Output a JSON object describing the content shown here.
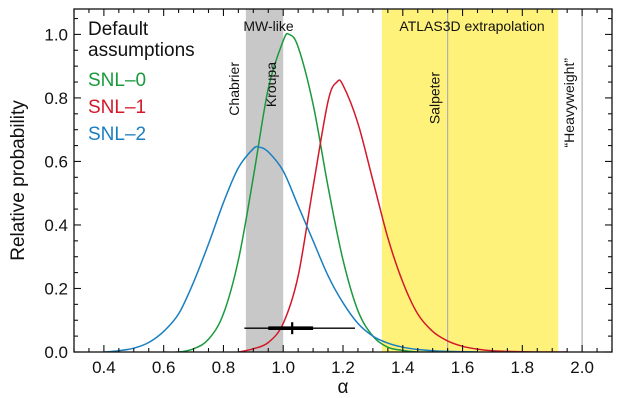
{
  "chart_data": {
    "type": "line",
    "xlabel": "α",
    "ylabel": "Relative probability",
    "xlim": [
      0.3,
      2.1
    ],
    "ylim": [
      0.0,
      1.08
    ],
    "xticks": [
      "0.4",
      "0.6",
      "0.8",
      "1.0",
      "1.2",
      "1.4",
      "1.6",
      "1.8",
      "2.0"
    ],
    "yticks": [
      "0.0",
      "0.2",
      "0.4",
      "0.6",
      "0.8",
      "1.0"
    ],
    "legend": {
      "position": "top-left",
      "title_line1": "Default",
      "title_line2": "assumptions",
      "entries": [
        "SNL–0",
        "SNL–1",
        "SNL–2"
      ]
    },
    "colors": {
      "SNL-0": "#1a9a3c",
      "SNL-1": "#d4182a",
      "SNL-2": "#1a7fc0",
      "mw_band": "#c8c8c8",
      "atlas_band": "#fff27a",
      "ref_line": "#b0b0b0"
    },
    "series": [
      {
        "name": "SNL–0",
        "x": [
          0.6,
          0.65,
          0.7,
          0.75,
          0.8,
          0.85,
          0.9,
          0.95,
          1.0,
          1.02,
          1.05,
          1.1,
          1.15,
          1.2,
          1.25,
          1.3,
          1.35,
          1.4,
          1.45,
          1.5
        ],
        "y": [
          0.0,
          0.0,
          0.01,
          0.04,
          0.12,
          0.29,
          0.55,
          0.83,
          0.98,
          1.0,
          0.96,
          0.78,
          0.52,
          0.29,
          0.13,
          0.05,
          0.015,
          0.005,
          0.0,
          0.0
        ]
      },
      {
        "name": "SNL–1",
        "x": [
          0.85,
          0.9,
          0.95,
          1.0,
          1.05,
          1.1,
          1.15,
          1.18,
          1.2,
          1.25,
          1.3,
          1.35,
          1.4,
          1.45,
          1.5,
          1.55,
          1.6,
          1.65,
          1.7,
          1.75,
          1.8,
          1.85,
          1.9,
          1.95
        ],
        "y": [
          0.0,
          0.01,
          0.03,
          0.09,
          0.24,
          0.52,
          0.79,
          0.85,
          0.84,
          0.72,
          0.54,
          0.36,
          0.22,
          0.12,
          0.065,
          0.035,
          0.018,
          0.009,
          0.004,
          0.002,
          0.001,
          0.0,
          0.0,
          0.0
        ]
      },
      {
        "name": "SNL–2",
        "x": [
          0.4,
          0.45,
          0.5,
          0.55,
          0.6,
          0.65,
          0.7,
          0.75,
          0.8,
          0.85,
          0.9,
          0.92,
          0.95,
          1.0,
          1.05,
          1.1,
          1.15,
          1.2,
          1.25,
          1.3,
          1.35,
          1.4,
          1.45,
          1.5,
          1.55,
          1.6,
          1.65
        ],
        "y": [
          0.0,
          0.004,
          0.012,
          0.03,
          0.065,
          0.12,
          0.22,
          0.34,
          0.47,
          0.58,
          0.64,
          0.645,
          0.63,
          0.57,
          0.46,
          0.35,
          0.24,
          0.155,
          0.09,
          0.05,
          0.028,
          0.015,
          0.008,
          0.004,
          0.002,
          0.001,
          0.0
        ]
      }
    ],
    "bands": [
      {
        "label": "MW-like",
        "x": [
          0.875,
          1.0
        ]
      },
      {
        "label": "ATLAS3D extrapolation",
        "x": [
          1.33,
          1.92
        ]
      }
    ],
    "vlines": [
      {
        "label": "Chabrier",
        "x": 0.875
      },
      {
        "label": "Kroupa",
        "x": 1.0
      },
      {
        "label": "Salpeter",
        "x": 1.55
      },
      {
        "label": "“Heavyweight”",
        "x": 2.0
      }
    ],
    "errorbar": {
      "center": 1.03,
      "inner": [
        0.95,
        1.1
      ],
      "outer": [
        0.87,
        1.24
      ],
      "y": 0.075
    }
  }
}
